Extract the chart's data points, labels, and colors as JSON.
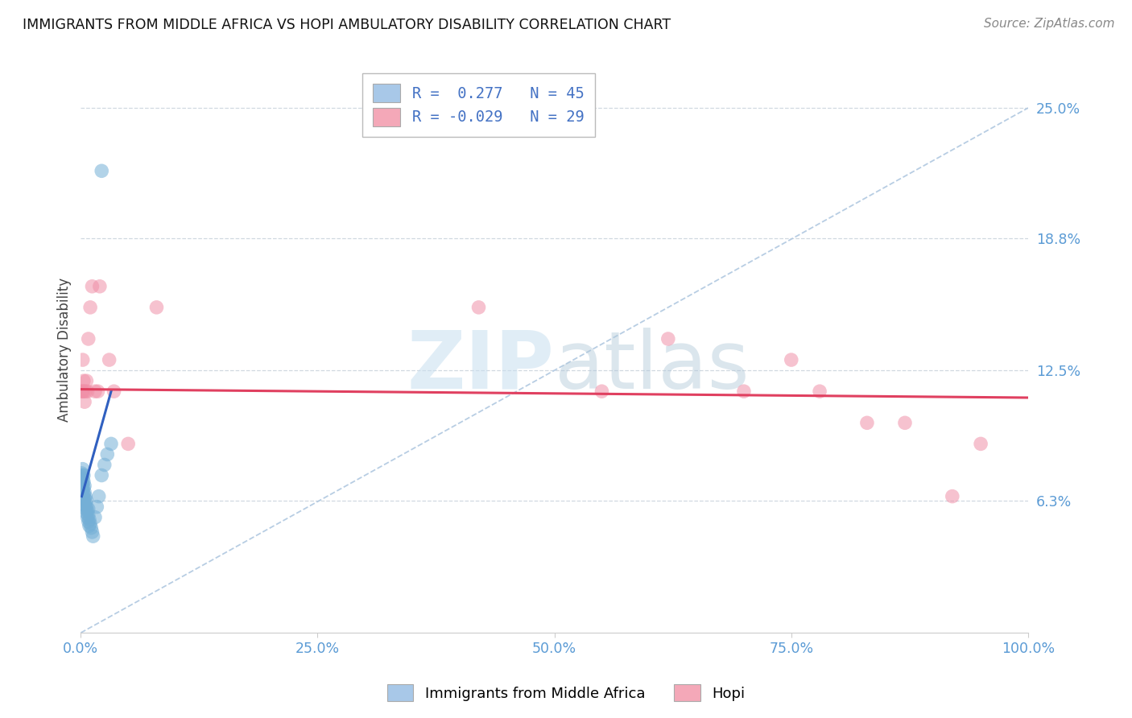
{
  "title": "IMMIGRANTS FROM MIDDLE AFRICA VS HOPI AMBULATORY DISABILITY CORRELATION CHART",
  "source": "Source: ZipAtlas.com",
  "ylabel": "Ambulatory Disability",
  "xlim": [
    0.0,
    1.0
  ],
  "ylim": [
    0.0,
    0.27
  ],
  "ytick_vals": [
    0.063,
    0.125,
    0.188,
    0.25
  ],
  "ytick_labels": [
    "6.3%",
    "12.5%",
    "18.8%",
    "25.0%"
  ],
  "xtick_vals": [
    0.0,
    0.25,
    0.5,
    0.75,
    1.0
  ],
  "xtick_labels": [
    "0.0%",
    "25.0%",
    "50.0%",
    "75.0%",
    "100.0%"
  ],
  "legend_entries": [
    {
      "label": "Immigrants from Middle Africa",
      "color": "#a8c8e8",
      "R": 0.277,
      "N": 45
    },
    {
      "label": "Hopi",
      "color": "#f4a8b8",
      "R": -0.029,
      "N": 29
    }
  ],
  "blue_color": "#74afd6",
  "pink_color": "#f090a8",
  "blue_line_color": "#3060c0",
  "pink_line_color": "#e04060",
  "diag_color": "#b0c8e0",
  "grid_color": "#d0d8e0",
  "background_color": "#ffffff",
  "title_color": "#111111",
  "source_color": "#888888",
  "blue_scatter_x": [
    0.001,
    0.001,
    0.001,
    0.001,
    0.001,
    0.002,
    0.002,
    0.002,
    0.002,
    0.002,
    0.002,
    0.003,
    0.003,
    0.003,
    0.003,
    0.003,
    0.004,
    0.004,
    0.004,
    0.004,
    0.005,
    0.005,
    0.005,
    0.006,
    0.006,
    0.006,
    0.007,
    0.007,
    0.008,
    0.008,
    0.008,
    0.009,
    0.009,
    0.01,
    0.011,
    0.012,
    0.013,
    0.015,
    0.017,
    0.019,
    0.022,
    0.025,
    0.028,
    0.032,
    0.022
  ],
  "blue_scatter_y": [
    0.068,
    0.07,
    0.072,
    0.074,
    0.076,
    0.065,
    0.068,
    0.071,
    0.073,
    0.075,
    0.078,
    0.063,
    0.066,
    0.069,
    0.072,
    0.075,
    0.061,
    0.064,
    0.067,
    0.07,
    0.059,
    0.062,
    0.065,
    0.057,
    0.06,
    0.063,
    0.055,
    0.058,
    0.053,
    0.056,
    0.059,
    0.051,
    0.054,
    0.052,
    0.05,
    0.048,
    0.046,
    0.055,
    0.06,
    0.065,
    0.075,
    0.08,
    0.085,
    0.09,
    0.22
  ],
  "pink_scatter_x": [
    0.001,
    0.002,
    0.002,
    0.003,
    0.003,
    0.004,
    0.005,
    0.006,
    0.007,
    0.008,
    0.01,
    0.012,
    0.015,
    0.018,
    0.02,
    0.03,
    0.035,
    0.05,
    0.08,
    0.42,
    0.55,
    0.62,
    0.7,
    0.75,
    0.78,
    0.83,
    0.87,
    0.92,
    0.95
  ],
  "pink_scatter_y": [
    0.115,
    0.13,
    0.115,
    0.12,
    0.115,
    0.11,
    0.115,
    0.12,
    0.115,
    0.14,
    0.155,
    0.165,
    0.115,
    0.115,
    0.165,
    0.13,
    0.115,
    0.09,
    0.155,
    0.155,
    0.115,
    0.14,
    0.115,
    0.13,
    0.115,
    0.1,
    0.1,
    0.065,
    0.09
  ],
  "blue_line_x": [
    0.001,
    0.032
  ],
  "blue_line_y": [
    0.065,
    0.115
  ],
  "pink_line_x": [
    0.0,
    1.0
  ],
  "pink_line_y": [
    0.116,
    0.112
  ],
  "diag_line_x": [
    0.0,
    1.0
  ],
  "diag_line_y": [
    0.0,
    0.25
  ]
}
